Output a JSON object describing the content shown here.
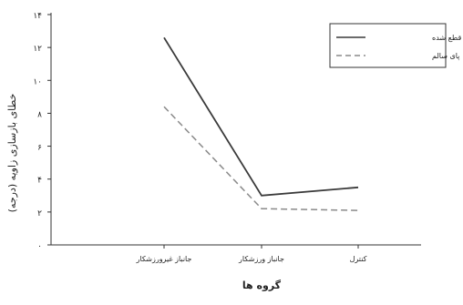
{
  "chart_data": {
    "type": "line",
    "title": "",
    "xlabel": "گروه ها",
    "ylabel": "خطای بازسازی زاویه (درجه)",
    "categories": [
      "جانباز غیرورزشکار",
      "جانباز ورزشکار",
      "کنترل"
    ],
    "yticks": [
      "۰",
      "۲",
      "۴",
      "۶",
      "۸",
      "۱۰",
      "۱۲",
      "۱۴"
    ],
    "ylim": [
      0,
      14
    ],
    "grid": false,
    "legend_position": "top-right",
    "series": [
      {
        "name": "پای قطع شده",
        "values": [
          12.6,
          3.0,
          3.5
        ],
        "color": "#3a3a3a",
        "dash": "solid"
      },
      {
        "name": "پای سالم",
        "values": [
          8.4,
          2.2,
          2.1
        ],
        "color": "#8a8a8a",
        "dash": "dashed"
      }
    ]
  }
}
